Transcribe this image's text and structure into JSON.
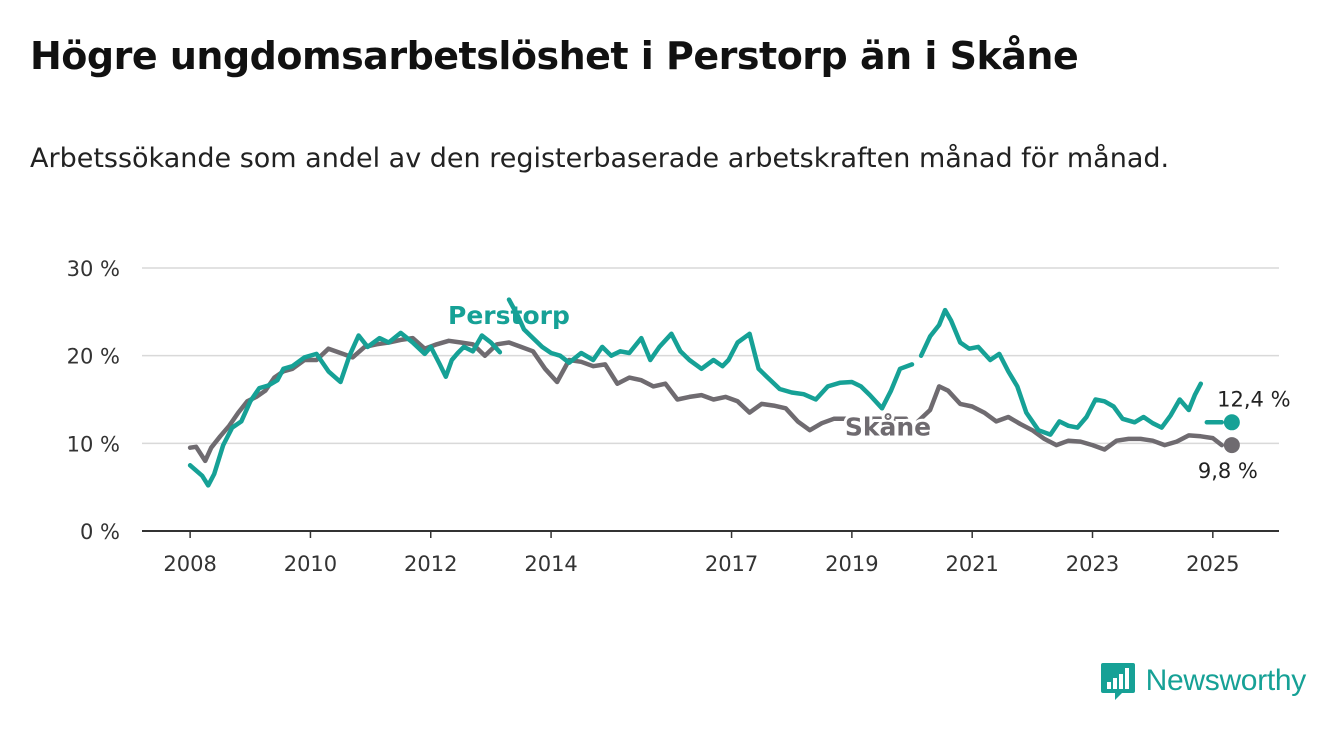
{
  "title": "Högre ungdomsarbetslöshet i Perstorp än i Skåne",
  "subtitle": "Arbetssökande som andel av den registerbaserade arbetskraften månad för månad.",
  "brand": {
    "name": "Newsworthy",
    "color": "#16a196"
  },
  "chart_data": {
    "type": "line",
    "title": "Högre ungdomsarbetslöshet i Perstorp än i Skåne",
    "subtitle": "Arbetssökande som andel av den registerbaserade arbetskraften månad för månad.",
    "x_ticks": [
      2008,
      2010,
      2012,
      2014,
      2017,
      2019,
      2021,
      2023,
      2025
    ],
    "y_ticks": [
      0,
      10,
      20,
      30
    ],
    "y_tick_labels": [
      "0 %",
      "10 %",
      "20 %",
      "30 %"
    ],
    "ylim": [
      0,
      30
    ],
    "xlim": [
      2007.2,
      2026.1
    ],
    "grid": true,
    "legend": "inline labels",
    "series": [
      {
        "name": "Perstorp",
        "color": "#16a196",
        "end_label": "12,4 %",
        "end_value": 12.4,
        "x": [
          2008.0,
          2008.2,
          2008.3,
          2008.4,
          2008.55,
          2008.7,
          2008.85,
          2009.0,
          2009.15,
          2009.3,
          2009.45,
          2009.55,
          2009.7,
          2009.9,
          2010.1,
          2010.3,
          2010.5,
          2010.65,
          2010.8,
          2010.95,
          2011.15,
          2011.3,
          2011.5,
          2011.7,
          2011.9,
          2012.0,
          2012.15,
          2012.25,
          2012.35,
          2012.45,
          2012.55,
          2012.7,
          2012.85,
          2013.0,
          2013.15,
          2013.3,
          2013.45,
          2013.55,
          2013.7,
          2013.85,
          2014.0,
          2014.15,
          2014.3,
          2014.5,
          2014.7,
          2014.85,
          2015.0,
          2015.15,
          2015.3,
          2015.5,
          2015.65,
          2015.8,
          2016.0,
          2016.15,
          2016.3,
          2016.5,
          2016.7,
          2016.85,
          2016.95,
          2017.1,
          2017.3,
          2017.45,
          2017.6,
          2017.8,
          2018.0,
          2018.2,
          2018.4,
          2018.6,
          2018.8,
          2019.0,
          2019.15,
          2019.3,
          2019.5,
          2019.65,
          2019.8,
          2020.0,
          2020.15,
          2020.3,
          2020.45,
          2020.55,
          2020.65,
          2020.8,
          2020.95,
          2021.1,
          2021.3,
          2021.45,
          2021.6,
          2021.75,
          2021.9,
          2022.1,
          2022.3,
          2022.45,
          2022.6,
          2022.75,
          2022.9,
          2023.05,
          2023.2,
          2023.35,
          2023.5,
          2023.7,
          2023.85,
          2024.0,
          2024.15,
          2024.3,
          2024.45,
          2024.6,
          2024.7,
          2024.8,
          2024.9,
          2025.0,
          2025.15
        ],
        "y": [
          7.5,
          6.3,
          5.2,
          6.5,
          9.8,
          11.8,
          12.5,
          14.8,
          16.3,
          16.6,
          17.2,
          18.5,
          18.8,
          19.8,
          20.2,
          18.2,
          17.0,
          20.0,
          22.3,
          21.0,
          22.0,
          21.5,
          22.6,
          21.5,
          20.2,
          21.0,
          19.0,
          17.6,
          19.5,
          20.3,
          21.0,
          20.5,
          22.3,
          21.5,
          20.4,
          26.4,
          24.5,
          23.0,
          22.0,
          21.0,
          20.3,
          20.0,
          19.2,
          20.3,
          19.5,
          21.0,
          20.0,
          20.5,
          20.3,
          22.0,
          19.5,
          21.0,
          22.5,
          20.5,
          19.5,
          18.5,
          19.5,
          18.8,
          19.5,
          21.5,
          22.5,
          18.5,
          17.5,
          16.2,
          15.8,
          15.6,
          15.0,
          16.5,
          16.9,
          17.0,
          16.5,
          15.5,
          14.0,
          16.0,
          18.5,
          19.0,
          20.0,
          22.2,
          23.5,
          25.2,
          24.0,
          21.5,
          20.8,
          21.0,
          19.5,
          20.2,
          18.2,
          16.5,
          13.5,
          11.5,
          11.0,
          12.5,
          12.0,
          11.8,
          13.0,
          15.0,
          14.8,
          14.2,
          12.8,
          12.4,
          13.0,
          12.3,
          11.8,
          13.2,
          15.0,
          13.8,
          15.5,
          16.8,
          12.4,
          12.4,
          12.4
        ],
        "gaps_after_index": [
          34,
          75,
          107
        ]
      },
      {
        "name": "Skåne",
        "color": "#6f6b70",
        "end_label": "9,8 %",
        "end_value": 9.8,
        "x": [
          2008.0,
          2008.1,
          2008.25,
          2008.35,
          2008.5,
          2008.65,
          2008.8,
          2008.95,
          2009.1,
          2009.25,
          2009.4,
          2009.55,
          2009.7,
          2009.9,
          2010.1,
          2010.3,
          2010.5,
          2010.7,
          2010.9,
          2011.1,
          2011.3,
          2011.5,
          2011.7,
          2011.9,
          2012.1,
          2012.3,
          2012.5,
          2012.7,
          2012.9,
          2013.1,
          2013.3,
          2013.5,
          2013.7,
          2013.9,
          2014.1,
          2014.3,
          2014.5,
          2014.7,
          2014.9,
          2015.1,
          2015.3,
          2015.5,
          2015.7,
          2015.9,
          2016.1,
          2016.3,
          2016.5,
          2016.7,
          2016.9,
          2017.1,
          2017.3,
          2017.5,
          2017.7,
          2017.9,
          2018.1,
          2018.3,
          2018.5,
          2018.7,
          2018.9,
          2019.0,
          2019.1,
          2019.2,
          2019.35,
          2019.5,
          2019.7,
          2019.9,
          2020.1,
          2020.3,
          2020.45,
          2020.6,
          2020.8,
          2021.0,
          2021.2,
          2021.4,
          2021.6,
          2021.8,
          2022.0,
          2022.2,
          2022.4,
          2022.6,
          2022.8,
          2023.0,
          2023.2,
          2023.4,
          2023.6,
          2023.8,
          2024.0,
          2024.2,
          2024.4,
          2024.6,
          2024.8,
          2025.0,
          2025.15
        ],
        "y": [
          9.5,
          9.6,
          8.0,
          9.5,
          10.8,
          12.0,
          13.5,
          14.8,
          15.3,
          16.0,
          17.5,
          18.2,
          18.5,
          19.5,
          19.5,
          20.8,
          20.3,
          19.8,
          21.0,
          21.3,
          21.5,
          21.8,
          22.0,
          20.8,
          21.3,
          21.7,
          21.5,
          21.3,
          20.0,
          21.3,
          21.5,
          21.0,
          20.5,
          18.5,
          17.0,
          19.5,
          19.3,
          18.8,
          19.0,
          16.8,
          17.5,
          17.2,
          16.5,
          16.8,
          15.0,
          15.3,
          15.5,
          15.0,
          15.3,
          14.8,
          13.5,
          14.5,
          14.3,
          14.0,
          12.5,
          11.5,
          12.3,
          12.8,
          12.8,
          12.8,
          12.8,
          12.8,
          12.8,
          12.8,
          12.8,
          12.8,
          12.5,
          13.8,
          16.5,
          16.0,
          14.5,
          14.2,
          13.5,
          12.5,
          13.0,
          12.2,
          11.5,
          10.5,
          9.8,
          10.3,
          10.2,
          9.8,
          9.3,
          10.3,
          10.5,
          10.5,
          10.3,
          9.8,
          10.2,
          10.9,
          10.8,
          10.6,
          9.8
        ],
        "gaps_after_index": [
          58,
          65
        ]
      }
    ]
  }
}
